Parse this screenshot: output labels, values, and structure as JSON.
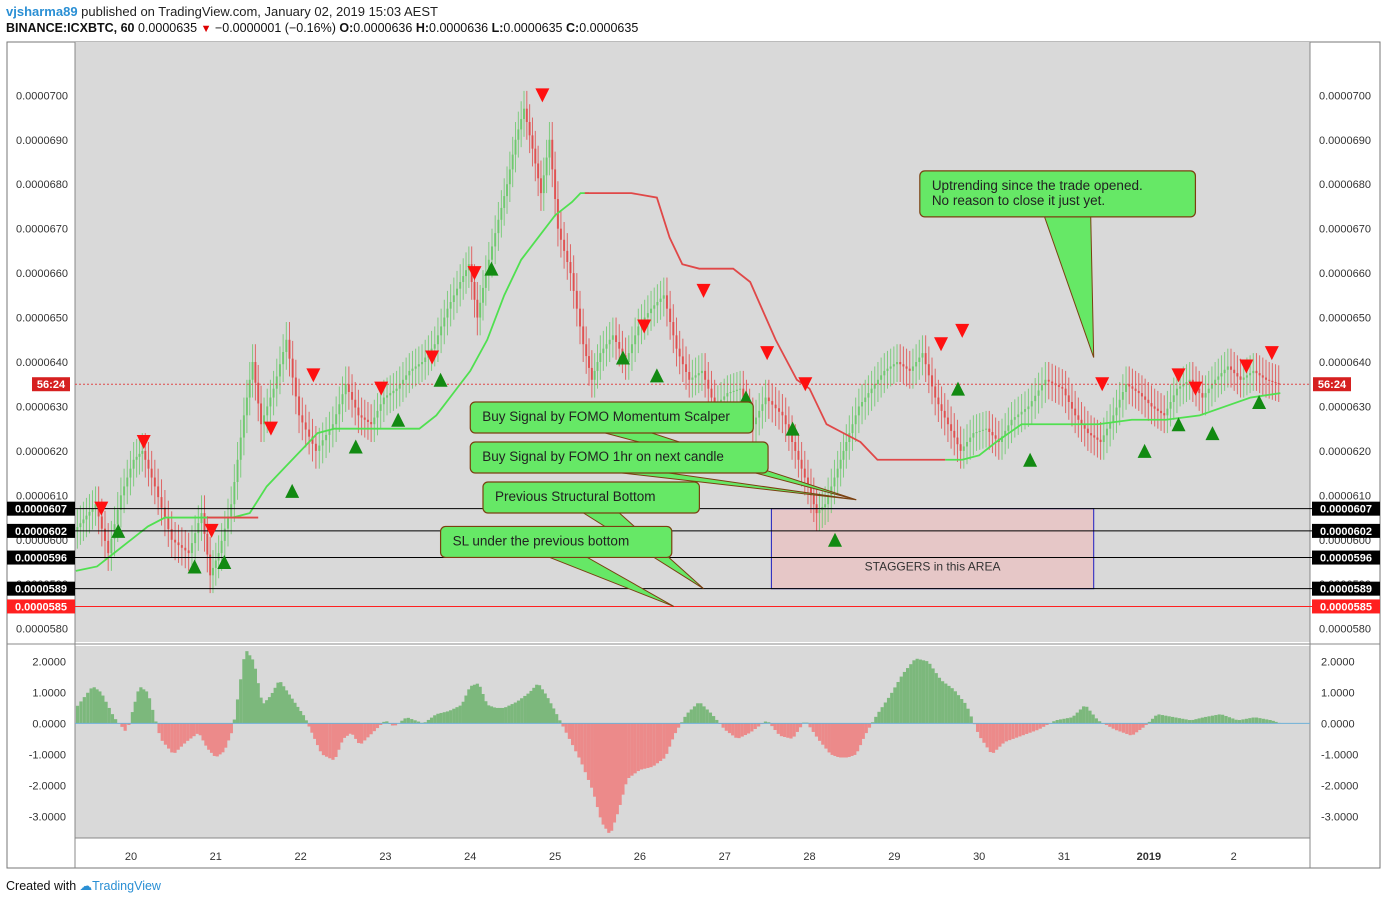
{
  "header": {
    "user": "vjsharma89",
    "published": " published on TradingView.com, January 02, 2019 15:03 AEST",
    "symbol": "BINANCE:ICXBTC, 60",
    "last": "0.0000635",
    "change": "−0.0000001 (−0.16%)",
    "o_label": "O:",
    "o": "0.0000636",
    "h_label": "H:",
    "h": "0.0000636",
    "l_label": "L:",
    "l": "0.0000635",
    "c_label": "C:",
    "c": "0.0000635"
  },
  "footer": {
    "created": "Created with",
    "brand": "TradingView"
  },
  "colors": {
    "up": "#68c868",
    "down": "#e04848",
    "baseline": "#ff2020",
    "box": "#2020c0",
    "callout": "#66e866",
    "callout_border": "#7a4010",
    "signal_up": "#128a12",
    "signal_down": "#ff1010"
  },
  "chart_data": {
    "type": "line",
    "price_axis": {
      "ticks": [
        "0.0000580",
        "0.0000590",
        "0.0000600",
        "0.0000610",
        "0.0000620",
        "0.0000630",
        "0.0000640",
        "0.0000650",
        "0.0000660",
        "0.0000670",
        "0.0000680",
        "0.0000690",
        "0.0000700"
      ],
      "tick_values": [
        5.8e-05,
        5.9e-05,
        6e-05,
        6.1e-05,
        6.2e-05,
        6.3e-05,
        6.4e-05,
        6.5e-05,
        6.6e-05,
        6.7e-05,
        6.8e-05,
        6.9e-05,
        7e-05
      ],
      "range": [
        5.77e-05,
        7.12e-05
      ]
    },
    "x_axis": {
      "labels": [
        "20",
        "21",
        "22",
        "23",
        "24",
        "25",
        "26",
        "27",
        "28",
        "29",
        "30",
        "31",
        "2019",
        "2"
      ],
      "day_index": [
        0,
        1,
        2,
        3,
        4,
        5,
        6,
        7,
        8,
        9,
        10,
        11,
        12,
        13
      ],
      "range": [
        -0.66,
        13.9
      ]
    },
    "price_series": {
      "x": [
        -0.65,
        -0.4,
        -0.25,
        -0.1,
        0.05,
        0.15,
        0.3,
        0.5,
        0.7,
        0.85,
        0.95,
        1.05,
        1.2,
        1.35,
        1.45,
        1.55,
        1.7,
        1.85,
        2.0,
        2.2,
        2.4,
        2.55,
        2.7,
        2.85,
        3.0,
        3.15,
        3.3,
        3.45,
        3.6,
        3.75,
        3.9,
        4.0,
        4.1,
        4.2,
        4.35,
        4.45,
        4.55,
        4.65,
        4.75,
        4.85,
        4.95,
        5.05,
        5.2,
        5.35,
        5.45,
        5.55,
        5.7,
        5.85,
        6.0,
        6.15,
        6.3,
        6.45,
        6.6,
        6.75,
        6.9,
        7.05,
        7.2,
        7.35,
        7.5,
        7.7,
        7.85,
        8.0,
        8.1,
        8.2,
        8.35,
        8.45,
        8.6,
        8.75,
        8.9,
        9.05,
        9.2,
        9.35,
        9.5,
        9.65,
        9.8,
        9.95,
        10.1,
        10.25,
        10.4,
        10.6,
        10.8,
        11.0,
        11.15,
        11.3,
        11.45,
        11.6,
        11.75,
        11.9,
        12.05,
        12.2,
        12.35,
        12.5,
        12.65,
        12.8,
        12.95,
        13.1,
        13.25,
        13.4,
        13.55
      ],
      "close": [
        6.02e-05,
        6.08e-05,
        5.97e-05,
        6.1e-05,
        6.18e-05,
        6.2e-05,
        6.12e-05,
        6e-05,
        5.97e-05,
        6.06e-05,
        5.92e-05,
        5.97e-05,
        6.08e-05,
        6.28e-05,
        6.4e-05,
        6.26e-05,
        6.34e-05,
        6.45e-05,
        6.28e-05,
        6.2e-05,
        6.26e-05,
        6.35e-05,
        6.28e-05,
        6.26e-05,
        6.32e-05,
        6.34e-05,
        6.38e-05,
        6.4e-05,
        6.44e-05,
        6.52e-05,
        6.58e-05,
        6.62e-05,
        6.5e-05,
        6.6e-05,
        6.72e-05,
        6.8e-05,
        6.9e-05,
        6.97e-05,
        6.88e-05,
        6.78e-05,
        6.9e-05,
        6.7e-05,
        6.6e-05,
        6.44e-05,
        6.36e-05,
        6.42e-05,
        6.46e-05,
        6.4e-05,
        6.48e-05,
        6.52e-05,
        6.55e-05,
        6.43e-05,
        6.36e-05,
        6.38e-05,
        6.3e-05,
        6.33e-05,
        6.34e-05,
        6.26e-05,
        6.32e-05,
        6.28e-05,
        6.2e-05,
        6.12e-05,
        6.06e-05,
        6.08e-05,
        6.16e-05,
        6.22e-05,
        6.3e-05,
        6.34e-05,
        6.38e-05,
        6.4e-05,
        6.38e-05,
        6.42e-05,
        6.32e-05,
        6.26e-05,
        6.2e-05,
        6.24e-05,
        6.25e-05,
        6.22e-05,
        6.27e-05,
        6.3e-05,
        6.36e-05,
        6.34e-05,
        6.28e-05,
        6.24e-05,
        6.22e-05,
        6.28e-05,
        6.35e-05,
        6.33e-05,
        6.3e-05,
        6.28e-05,
        6.34e-05,
        6.36e-05,
        6.32e-05,
        6.36e-05,
        6.39e-05,
        6.36e-05,
        6.38e-05,
        6.36e-05,
        6.35e-05
      ]
    },
    "lines": {
      "green_trail": {
        "x": [
          -0.65,
          -0.4,
          -0.2,
          0.0,
          0.2,
          0.4,
          0.6,
          0.8,
          1.0,
          1.2,
          1.4,
          1.6,
          1.8,
          2.0,
          2.2,
          2.4,
          2.6,
          2.8,
          3.0,
          3.2,
          3.4,
          3.6,
          3.8,
          4.0,
          4.2,
          4.4,
          4.6,
          4.8,
          5.0,
          5.2,
          5.3,
          5.4
        ],
        "y": [
          5.93e-05,
          5.94e-05,
          5.97e-05,
          6e-05,
          6.03e-05,
          6.05e-05,
          6.05e-05,
          6.05e-05,
          6.05e-05,
          6.05e-05,
          6.06e-05,
          6.12e-05,
          6.16e-05,
          6.2e-05,
          6.24e-05,
          6.25e-05,
          6.25e-05,
          6.25e-05,
          6.25e-05,
          6.25e-05,
          6.25e-05,
          6.28e-05,
          6.33e-05,
          6.38e-05,
          6.45e-05,
          6.55e-05,
          6.63e-05,
          6.68e-05,
          6.73e-05,
          6.76e-05,
          6.78e-05,
          6.78e-05
        ]
      },
      "red_stop": {
        "x": [
          0.9,
          1.0,
          1.2,
          1.4,
          1.5
        ],
        "y": [
          6.05e-05,
          6.05e-05,
          6.05e-05,
          6.05e-05,
          6.05e-05
        ]
      },
      "red_trail": {
        "x": [
          5.35,
          5.6,
          5.9,
          6.2,
          6.35,
          6.5,
          6.7,
          6.9,
          7.1,
          7.3,
          7.6,
          7.85,
          8.0,
          8.2,
          8.4,
          8.6,
          8.8,
          9.0,
          9.2,
          9.4,
          9.6
        ],
        "y": [
          6.78e-05,
          6.78e-05,
          6.78e-05,
          6.77e-05,
          6.68e-05,
          6.62e-05,
          6.61e-05,
          6.61e-05,
          6.61e-05,
          6.58e-05,
          6.45e-05,
          6.36e-05,
          6.34e-05,
          6.26e-05,
          6.24e-05,
          6.22e-05,
          6.18e-05,
          6.18e-05,
          6.18e-05,
          6.18e-05,
          6.18e-05
        ]
      },
      "green_trail2": {
        "x": [
          9.6,
          9.8,
          10.0,
          10.2,
          10.5,
          11.0,
          11.4,
          11.8,
          12.2,
          12.6,
          12.9,
          13.2,
          13.55
        ],
        "y": [
          6.18e-05,
          6.18e-05,
          6.19e-05,
          6.22e-05,
          6.26e-05,
          6.26e-05,
          6.26e-05,
          6.27e-05,
          6.27e-05,
          6.28e-05,
          6.3e-05,
          6.32e-05,
          6.33e-05
        ],
        "hidden": true
      }
    },
    "horizontal_levels": [
      {
        "value": 6.07e-05,
        "label": "0.0000607",
        "color": "#000000"
      },
      {
        "value": 6.02e-05,
        "label": "0.0000602",
        "color": "#000000"
      },
      {
        "value": 5.96e-05,
        "label": "0.0000596",
        "color": "#000000"
      },
      {
        "value": 5.89e-05,
        "label": "0.0000589",
        "color": "#000000"
      },
      {
        "value": 5.85e-05,
        "label": "0.0000585",
        "color": "#ff2020"
      }
    ],
    "countdown": {
      "value": 6.35e-05,
      "label": "56:24"
    },
    "signals": {
      "buy": [
        {
          "x": -0.15,
          "y": 6.02e-05
        },
        {
          "x": 0.75,
          "y": 5.94e-05
        },
        {
          "x": 1.1,
          "y": 5.95e-05
        },
        {
          "x": 1.9,
          "y": 6.11e-05
        },
        {
          "x": 2.65,
          "y": 6.21e-05
        },
        {
          "x": 3.15,
          "y": 6.27e-05
        },
        {
          "x": 3.65,
          "y": 6.36e-05
        },
        {
          "x": 4.25,
          "y": 6.61e-05
        },
        {
          "x": 5.8,
          "y": 6.41e-05
        },
        {
          "x": 6.2,
          "y": 6.37e-05
        },
        {
          "x": 7.25,
          "y": 6.32e-05
        },
        {
          "x": 7.8,
          "y": 6.25e-05
        },
        {
          "x": 8.3,
          "y": 6e-05
        },
        {
          "x": 9.75,
          "y": 6.34e-05
        },
        {
          "x": 10.6,
          "y": 6.18e-05
        },
        {
          "x": 11.95,
          "y": 6.2e-05
        },
        {
          "x": 12.35,
          "y": 6.26e-05
        },
        {
          "x": 12.75,
          "y": 6.24e-05
        },
        {
          "x": 13.3,
          "y": 6.31e-05
        }
      ],
      "sell": [
        {
          "x": -0.35,
          "y": 6.07e-05
        },
        {
          "x": 0.15,
          "y": 6.22e-05
        },
        {
          "x": 0.95,
          "y": 6.02e-05
        },
        {
          "x": 1.65,
          "y": 6.25e-05
        },
        {
          "x": 2.15,
          "y": 6.37e-05
        },
        {
          "x": 2.95,
          "y": 6.34e-05
        },
        {
          "x": 3.55,
          "y": 6.41e-05
        },
        {
          "x": 4.05,
          "y": 6.6e-05
        },
        {
          "x": 4.85,
          "y": 7e-05
        },
        {
          "x": 6.05,
          "y": 6.48e-05
        },
        {
          "x": 6.75,
          "y": 6.56e-05
        },
        {
          "x": 7.5,
          "y": 6.42e-05
        },
        {
          "x": 7.95,
          "y": 6.35e-05
        },
        {
          "x": 9.55,
          "y": 6.44e-05
        },
        {
          "x": 9.8,
          "y": 6.47e-05
        },
        {
          "x": 11.45,
          "y": 6.35e-05
        },
        {
          "x": 12.35,
          "y": 6.37e-05
        },
        {
          "x": 12.55,
          "y": 6.34e-05
        },
        {
          "x": 13.15,
          "y": 6.39e-05
        },
        {
          "x": 13.45,
          "y": 6.42e-05
        }
      ]
    },
    "rectangle": {
      "x0": 7.55,
      "x1": 11.35,
      "y0": 6.07e-05,
      "y1": 5.89e-05,
      "label": "STAGGERS in this AREA"
    },
    "callouts": [
      {
        "text": [
          "Uptrending since the trade opened.",
          "No reason to close it just yet."
        ],
        "box_x": 9.3,
        "box_y": 6.83e-05,
        "tip_x": 11.35,
        "tip_y": 6.41e-05
      },
      {
        "text": [
          "Buy Signal by FOMO Momentum Scalper"
        ],
        "box_x": 4.0,
        "box_y": 6.31e-05,
        "tip_x": 8.55,
        "tip_y": 6.09e-05
      },
      {
        "text": [
          "Buy Signal by FOMO 1hr on next candle"
        ],
        "box_x": 4.0,
        "box_y": 6.22e-05,
        "tip_x": 8.55,
        "tip_y": 6.09e-05
      },
      {
        "text": [
          "Previous Structural Bottom"
        ],
        "box_x": 4.15,
        "box_y": 6.13e-05,
        "tip_x": 6.75,
        "tip_y": 5.89e-05
      },
      {
        "text": [
          "SL under the previous bottom"
        ],
        "box_x": 3.65,
        "box_y": 6.03e-05,
        "tip_x": 6.4,
        "tip_y": 5.85e-05
      }
    ],
    "oscillator": {
      "ticks": [
        "2.0000",
        "1.0000",
        "0.0000",
        "-1.0000",
        "-2.0000",
        "-3.0000"
      ],
      "tick_values": [
        2,
        1,
        0,
        -1,
        -2,
        -3
      ],
      "range": [
        -3.7,
        2.5
      ],
      "x": [
        -0.65,
        -0.45,
        -0.35,
        -0.2,
        -0.05,
        0.0,
        0.1,
        0.2,
        0.35,
        0.5,
        0.65,
        0.8,
        0.9,
        1.0,
        1.1,
        1.2,
        1.35,
        1.45,
        1.55,
        1.65,
        1.75,
        1.85,
        1.95,
        2.05,
        2.15,
        2.25,
        2.4,
        2.5,
        2.6,
        2.7,
        2.85,
        3.0,
        3.1,
        3.25,
        3.45,
        3.6,
        3.75,
        3.9,
        4.0,
        4.1,
        4.2,
        4.3,
        4.4,
        4.55,
        4.7,
        4.8,
        4.9,
        5.0,
        5.15,
        5.3,
        5.45,
        5.55,
        5.65,
        5.75,
        5.85,
        6.0,
        6.15,
        6.3,
        6.4,
        6.55,
        6.7,
        6.85,
        7.0,
        7.15,
        7.3,
        7.5,
        7.65,
        7.8,
        7.95,
        8.1,
        8.25,
        8.35,
        8.45,
        8.55,
        8.65,
        8.8,
        8.95,
        9.1,
        9.25,
        9.4,
        9.55,
        9.7,
        9.85,
        10.0,
        10.15,
        10.3,
        10.5,
        10.7,
        10.9,
        11.1,
        11.25,
        11.4,
        11.6,
        11.8,
        11.95,
        12.1,
        12.3,
        12.5,
        12.65,
        12.85,
        13.05,
        13.25,
        13.45,
        13.55
      ],
      "values": [
        0.5,
        1.2,
        1.0,
        0.2,
        -0.3,
        0.2,
        1.2,
        1.0,
        -0.5,
        -1.0,
        -0.6,
        -0.3,
        -0.8,
        -1.1,
        -0.9,
        -0.2,
        2.4,
        2.0,
        0.6,
        0.9,
        1.4,
        1.0,
        0.6,
        0.2,
        -0.4,
        -1.0,
        -1.2,
        -0.5,
        -0.3,
        -0.7,
        -0.3,
        0.1,
        -0.1,
        0.2,
        0.0,
        0.3,
        0.4,
        0.6,
        1.2,
        1.3,
        0.6,
        0.5,
        0.5,
        0.7,
        1.0,
        1.3,
        0.9,
        0.4,
        -0.4,
        -1.2,
        -2.2,
        -3.2,
        -3.6,
        -2.8,
        -1.8,
        -1.5,
        -1.4,
        -1.1,
        -0.4,
        0.3,
        0.7,
        0.3,
        -0.2,
        -0.5,
        -0.3,
        0.1,
        -0.4,
        -0.5,
        0.1,
        -0.5,
        -1.0,
        -1.1,
        -1.1,
        -1.0,
        -0.4,
        0.3,
        0.9,
        1.6,
        2.1,
        2.0,
        1.4,
        1.1,
        0.6,
        -0.4,
        -1.0,
        -0.6,
        -0.4,
        -0.2,
        0.1,
        0.2,
        0.6,
        0.1,
        -0.2,
        -0.4,
        -0.1,
        0.3,
        0.2,
        0.1,
        0.2,
        0.3,
        0.1,
        0.2,
        0.1,
        0.0
      ]
    }
  }
}
